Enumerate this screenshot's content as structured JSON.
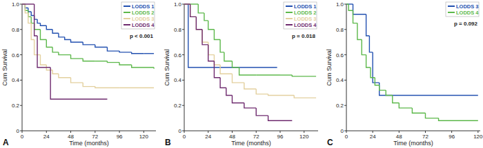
{
  "chart_data": [
    {
      "type": "line",
      "title": "A",
      "xlabel": "Time (months)",
      "ylabel": "Cum Survival",
      "annotation": "p < 0.001",
      "xlim": [
        0,
        132
      ],
      "xticks": [
        0,
        24,
        48,
        72,
        96,
        120
      ],
      "ylim": [
        0,
        1
      ],
      "yticks": [
        0,
        0.2,
        0.4,
        0.6,
        0.8,
        {
          "value": 1,
          "label": "1.0"
        }
      ],
      "legend": "upper right",
      "line_style": "step",
      "series": [
        {
          "name": "LODDS 1",
          "color": "#2250b0",
          "x": [
            0,
            3,
            6,
            9,
            12,
            15,
            18,
            24,
            30,
            36,
            42,
            48,
            60,
            72,
            84,
            96,
            108,
            120,
            130
          ],
          "values": [
            1,
            0.97,
            0.94,
            0.91,
            0.88,
            0.85,
            0.83,
            0.8,
            0.77,
            0.74,
            0.72,
            0.7,
            0.68,
            0.66,
            0.63,
            0.62,
            0.61,
            0.61,
            0.61
          ]
        },
        {
          "name": "LODDS 2",
          "color": "#5cb84a",
          "x": [
            0,
            3,
            6,
            9,
            12,
            18,
            24,
            30,
            36,
            48,
            60,
            72,
            84,
            96,
            108,
            130
          ],
          "values": [
            1,
            0.95,
            0.9,
            0.85,
            0.8,
            0.72,
            0.66,
            0.62,
            0.6,
            0.57,
            0.55,
            0.55,
            0.54,
            0.52,
            0.5,
            0.49
          ]
        },
        {
          "name": "LODDS 3",
          "color": "#e3d09e",
          "x": [
            0,
            3,
            6,
            9,
            12,
            18,
            24,
            30,
            36,
            48,
            60,
            72,
            96,
            130
          ],
          "values": [
            1,
            0.93,
            0.85,
            0.72,
            0.6,
            0.52,
            0.48,
            0.45,
            0.42,
            0.38,
            0.35,
            0.34,
            0.34,
            0.34
          ]
        },
        {
          "name": "LODDS 4",
          "color": "#6e2a6e",
          "x": [
            0,
            12,
            15,
            28,
            84
          ],
          "values": [
            1,
            0.75,
            0.5,
            0.25,
            0.25
          ]
        }
      ]
    },
    {
      "type": "line",
      "title": "B",
      "xlabel": "Time (months)",
      "ylabel": "Cum Survival",
      "annotation": "p = 0.018",
      "xlim": [
        0,
        134
      ],
      "xticks": [
        0,
        24,
        48,
        72,
        96,
        120
      ],
      "ylim": [
        0,
        1
      ],
      "yticks": [
        0,
        0.2,
        0.4,
        0.6,
        0.8,
        {
          "value": 1,
          "label": "1.0"
        }
      ],
      "legend": "upper right",
      "line_style": "step",
      "series": [
        {
          "name": "LODDS 1",
          "color": "#2250b0",
          "x": [
            0,
            4,
            93
          ],
          "values": [
            1,
            0.5,
            0.5
          ]
        },
        {
          "name": "LODDS 2",
          "color": "#5cb84a",
          "x": [
            0,
            14,
            20,
            24,
            30,
            36,
            40,
            48,
            55,
            72,
            96,
            108,
            132
          ],
          "values": [
            1,
            0.93,
            0.87,
            0.8,
            0.72,
            0.62,
            0.55,
            0.5,
            0.44,
            0.44,
            0.44,
            0.43,
            0.43
          ]
        },
        {
          "name": "LODDS 3",
          "color": "#e3d09e",
          "x": [
            0,
            6,
            12,
            18,
            24,
            30,
            36,
            48,
            60,
            72,
            84,
            110,
            132
          ],
          "values": [
            1,
            0.9,
            0.8,
            0.7,
            0.6,
            0.52,
            0.45,
            0.38,
            0.33,
            0.29,
            0.28,
            0.26,
            0.26
          ]
        },
        {
          "name": "LODDS 4",
          "color": "#6e2a6e",
          "x": [
            0,
            6,
            12,
            18,
            24,
            30,
            36,
            42,
            48,
            60,
            72,
            84,
            108
          ],
          "values": [
            1,
            0.9,
            0.8,
            0.68,
            0.55,
            0.42,
            0.34,
            0.28,
            0.22,
            0.18,
            0.12,
            0.08,
            0.08
          ]
        }
      ]
    },
    {
      "type": "line",
      "title": "C",
      "xlabel": "Time (months)",
      "ylabel": "Cum Survival",
      "annotation": "p = 0.092",
      "xlim": [
        0,
        122
      ],
      "xticks": [
        0,
        24,
        48,
        72,
        96,
        120
      ],
      "ylim": [
        0,
        1
      ],
      "yticks": [
        0,
        0.2,
        0.4,
        0.6,
        0.8,
        {
          "value": 1,
          "label": "1.0"
        }
      ],
      "legend": "upper right",
      "line_style": "step",
      "series": [
        {
          "name": "LODDS 3",
          "color": "#2250b0",
          "x": [
            0,
            6,
            18,
            21,
            24,
            30,
            120
          ],
          "values": [
            1,
            0.92,
            0.75,
            0.62,
            0.38,
            0.28,
            0.28
          ]
        },
        {
          "name": "LODDS 4",
          "color": "#5cb84a",
          "x": [
            0,
            2,
            6,
            10,
            14,
            18,
            22,
            26,
            30,
            36,
            42,
            48,
            60,
            72,
            84,
            120
          ],
          "values": [
            1,
            0.95,
            0.85,
            0.72,
            0.6,
            0.5,
            0.42,
            0.36,
            0.32,
            0.28,
            0.22,
            0.18,
            0.14,
            0.1,
            0.08,
            0.08
          ]
        }
      ]
    }
  ]
}
